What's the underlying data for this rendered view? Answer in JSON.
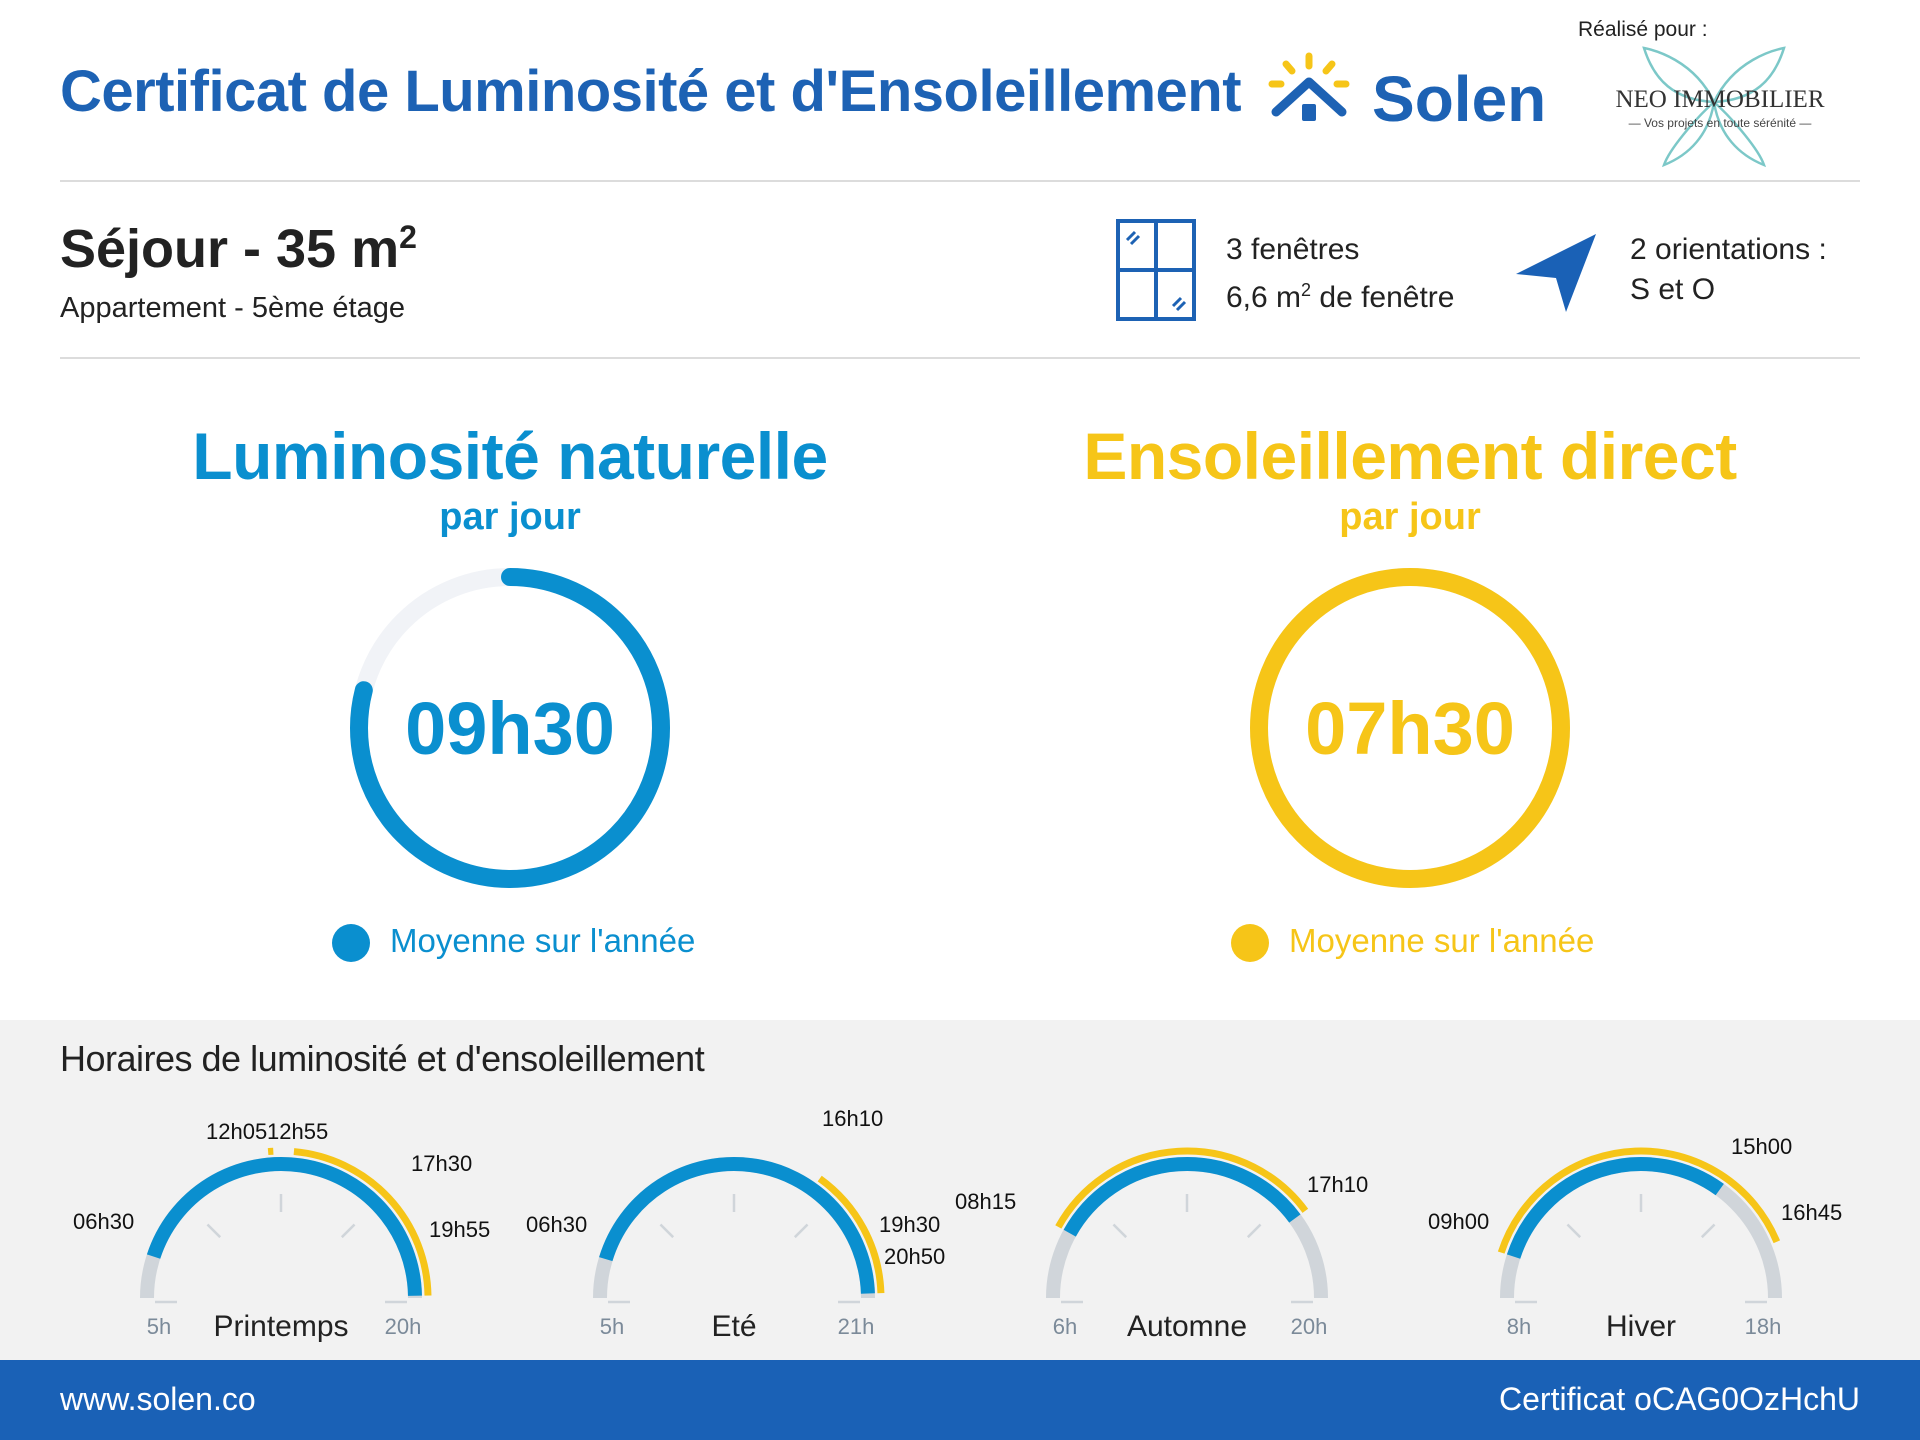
{
  "header": {
    "title": "Certificat de Luminosité et d'Ensoleillement",
    "brand": "Solen",
    "made_for": "Réalisé pour :",
    "partner_name": "NEO IMMOBILIER",
    "partner_tagline": "— Vos projets en toute sérénité —"
  },
  "room": {
    "name": "Séjour - 35 m",
    "area_exp": "2",
    "subtitle": "Appartement - 5ème étage",
    "windows_count": "3 fenêtres",
    "window_area": "6,6 m",
    "window_area_exp": "2",
    "window_area_suffix": " de fenêtre",
    "orientations_label": "2 orientations :",
    "orientations_value": "S et O"
  },
  "luminosity": {
    "title": "Luminosité naturelle",
    "subtitle": "par jour",
    "value": "09h30",
    "fraction": 0.79,
    "legend": "Moyenne sur l'année",
    "color": "#0a8fcf"
  },
  "sunshine": {
    "title": "Ensoleillement direct",
    "subtitle": "par jour",
    "value": "07h30",
    "fraction": 1.0,
    "legend": "Moyenne sur l'année",
    "color": "#f6c518"
  },
  "hours": {
    "title": "Horaires de luminosité et d'ensoleillement",
    "seasons": [
      {
        "name": "Printemps",
        "start": 5,
        "end": 20,
        "start_label": "5h",
        "end_label": "20h",
        "light": [
          6.5,
          19.92
        ],
        "sun": [
          12.92,
          19.92
        ],
        "sun_highlight": [
          12.08,
          12.25
        ],
        "labels": [
          "06h30",
          "12h05",
          "12h55",
          "17h30",
          "19h55"
        ]
      },
      {
        "name": "Eté",
        "start": 5,
        "end": 21,
        "start_label": "5h",
        "end_label": "21h",
        "light": [
          6.5,
          20.83
        ],
        "sun": [
          16.17,
          20.83
        ],
        "labels": [
          "06h30",
          "16h10",
          "19h30",
          "20h50"
        ]
      },
      {
        "name": "Automne",
        "start": 6,
        "end": 20,
        "start_label": "6h",
        "end_label": "20h",
        "light": [
          8.25,
          17.17
        ],
        "sun": [
          8.25,
          17.17
        ],
        "labels": [
          "08h15",
          "17h10"
        ]
      },
      {
        "name": "Hiver",
        "start": 8,
        "end": 18,
        "start_label": "8h",
        "end_label": "18h",
        "light": [
          9.0,
          15.0
        ],
        "sun": [
          9.0,
          16.75
        ],
        "labels": [
          "09h00",
          "15h00",
          "16h45"
        ]
      }
    ]
  },
  "footer": {
    "url": "www.solen.co",
    "certificate": "Certificat oCAG0OzHchU"
  }
}
